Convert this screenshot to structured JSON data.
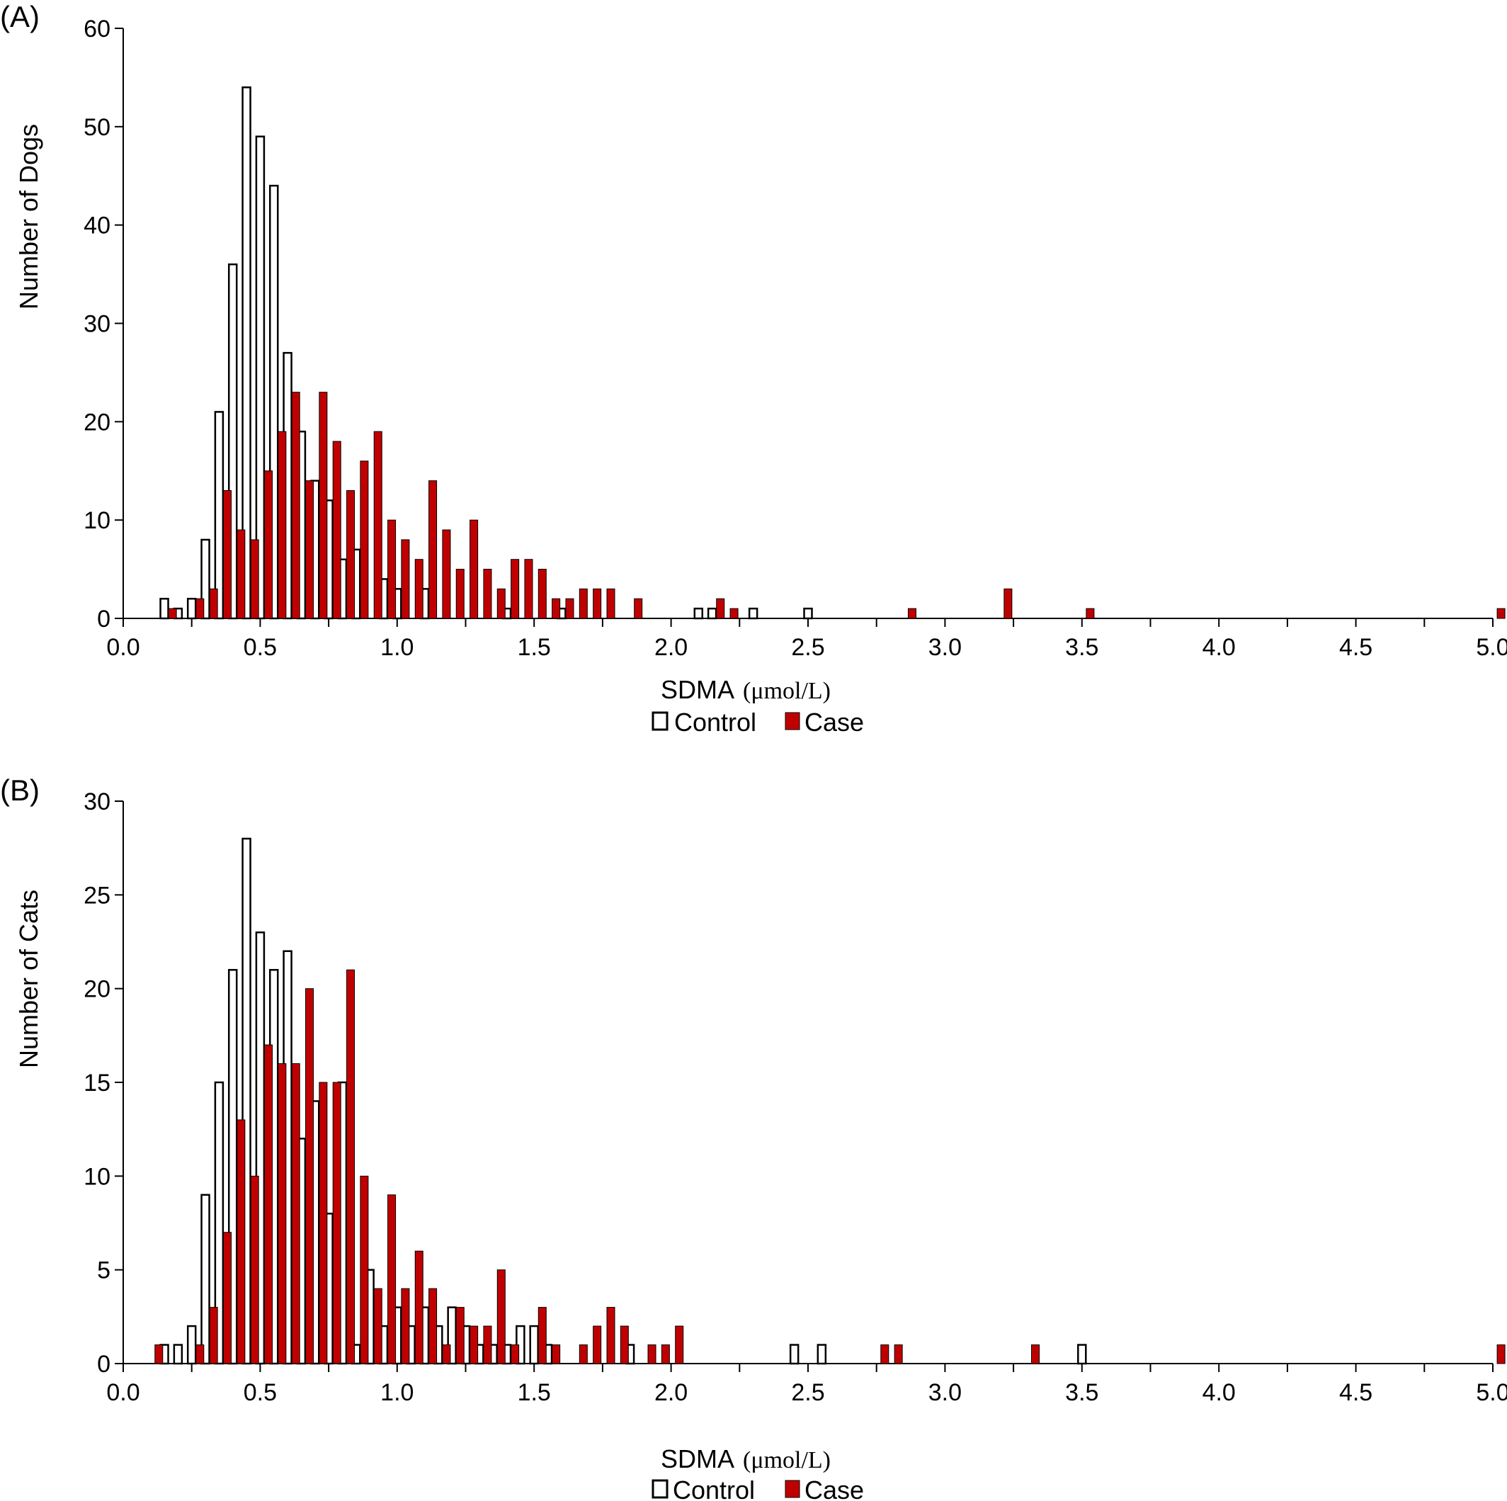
{
  "colors": {
    "control_fill": "#ffffff",
    "case_fill": "#c00000",
    "bar_stroke": "#000000",
    "axis": "#000000"
  },
  "chart_data": [
    {
      "type": "bar",
      "panel_label": "(A)",
      "xlabel": "SDMA",
      "xunit": "(μmol/L)",
      "ylabel": "Number of Dogs",
      "xlim": [
        0,
        5
      ],
      "ylim": [
        0,
        60
      ],
      "xticks": [
        "0.0",
        "0.5",
        "1.0",
        "1.5",
        "2.0",
        "2.5",
        "3.0",
        "3.5",
        "4.0",
        "4.5",
        "5.0"
      ],
      "yticks": [
        "0",
        "10",
        "20",
        "30",
        "40",
        "50",
        "60"
      ],
      "grid": false,
      "legend_position": "bottom",
      "series": [
        {
          "name": "Control",
          "x": [
            0.15,
            0.2,
            0.25,
            0.3,
            0.35,
            0.4,
            0.45,
            0.5,
            0.55,
            0.6,
            0.65,
            0.7,
            0.75,
            0.8,
            0.85,
            0.95,
            1.0,
            1.1,
            1.4,
            1.6,
            2.1,
            2.15,
            2.3,
            2.5
          ],
          "values": [
            2,
            1,
            2,
            8,
            21,
            36,
            54,
            49,
            44,
            27,
            19,
            14,
            12,
            6,
            7,
            4,
            3,
            3,
            1,
            1,
            1,
            1,
            1,
            1
          ]
        },
        {
          "name": "Case",
          "x": [
            0.18,
            0.28,
            0.33,
            0.38,
            0.43,
            0.48,
            0.53,
            0.58,
            0.63,
            0.68,
            0.73,
            0.78,
            0.83,
            0.88,
            0.93,
            0.98,
            1.03,
            1.08,
            1.13,
            1.18,
            1.23,
            1.28,
            1.33,
            1.38,
            1.43,
            1.48,
            1.53,
            1.58,
            1.63,
            1.68,
            1.73,
            1.78,
            1.88,
            2.18,
            2.23,
            2.88,
            3.23,
            3.53,
            5.03
          ],
          "values": [
            1,
            2,
            3,
            13,
            9,
            8,
            15,
            19,
            23,
            14,
            23,
            18,
            13,
            16,
            19,
            10,
            8,
            6,
            14,
            9,
            5,
            10,
            5,
            3,
            6,
            6,
            5,
            2,
            2,
            3,
            3,
            3,
            2,
            2,
            1,
            1,
            3,
            1,
            1
          ]
        }
      ]
    },
    {
      "type": "bar",
      "panel_label": "(B)",
      "xlabel": "SDMA",
      "xunit": "(μmol/L)",
      "ylabel": "Number of Cats",
      "xlim": [
        0,
        5
      ],
      "ylim": [
        0,
        30
      ],
      "xticks": [
        "0.0",
        "0.5",
        "1.0",
        "1.5",
        "2.0",
        "2.5",
        "3.0",
        "3.5",
        "4.0",
        "4.5",
        "5.0"
      ],
      "yticks": [
        "0",
        "5",
        "10",
        "15",
        "20",
        "25",
        "30"
      ],
      "grid": false,
      "legend_position": "bottom",
      "series": [
        {
          "name": "Control",
          "x": [
            0.15,
            0.2,
            0.25,
            0.3,
            0.35,
            0.4,
            0.45,
            0.5,
            0.55,
            0.6,
            0.65,
            0.7,
            0.75,
            0.8,
            0.85,
            0.9,
            0.95,
            1.0,
            1.05,
            1.1,
            1.15,
            1.2,
            1.25,
            1.3,
            1.35,
            1.4,
            1.45,
            1.5,
            1.55,
            1.85,
            2.45,
            2.55,
            3.5
          ],
          "values": [
            1,
            1,
            2,
            9,
            15,
            21,
            28,
            23,
            21,
            22,
            12,
            14,
            8,
            15,
            1,
            5,
            2,
            3,
            2,
            3,
            2,
            3,
            2,
            1,
            1,
            1,
            2,
            2,
            1,
            1,
            1,
            1,
            1
          ]
        },
        {
          "name": "Case",
          "x": [
            0.13,
            0.28,
            0.33,
            0.38,
            0.43,
            0.48,
            0.53,
            0.58,
            0.63,
            0.68,
            0.73,
            0.78,
            0.83,
            0.88,
            0.93,
            0.98,
            1.03,
            1.08,
            1.13,
            1.18,
            1.23,
            1.28,
            1.33,
            1.38,
            1.43,
            1.53,
            1.58,
            1.68,
            1.73,
            1.78,
            1.83,
            1.93,
            1.98,
            2.03,
            2.78,
            2.83,
            3.33,
            5.03
          ],
          "values": [
            1,
            1,
            3,
            7,
            13,
            10,
            17,
            16,
            16,
            20,
            15,
            15,
            21,
            10,
            4,
            9,
            4,
            6,
            4,
            1,
            3,
            2,
            2,
            5,
            1,
            3,
            1,
            1,
            2,
            3,
            2,
            1,
            1,
            2,
            1,
            1,
            1,
            1
          ]
        }
      ]
    }
  ]
}
